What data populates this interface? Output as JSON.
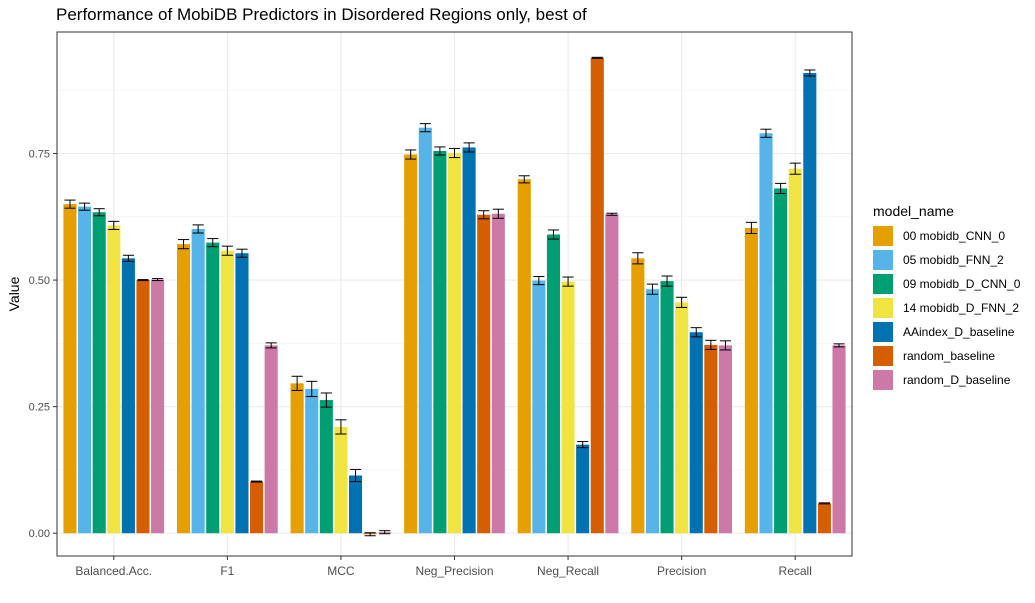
{
  "chart_data": {
    "type": "bar",
    "title": "Performance of MobiDB Predictors in Disordered Regions only, best of",
    "xlabel": "",
    "ylabel": "Value",
    "ylim": [
      -0.045,
      0.99
    ],
    "yticks": [
      0.0,
      0.25,
      0.5,
      0.75
    ],
    "ytick_labels": [
      "0.00",
      "0.25",
      "0.50",
      "0.75"
    ],
    "grid": true,
    "legend_position": "right",
    "legend_title": "model_name",
    "categories": [
      "Balanced.Acc.",
      "F1",
      "MCC",
      "Neg_Precision",
      "Neg_Recall",
      "Precision",
      "Recall"
    ],
    "series": [
      {
        "name": "00 mobidb_CNN_0",
        "color": "#E69F00",
        "values": [
          0.65,
          0.571,
          0.296,
          0.748,
          0.699,
          0.543,
          0.603
        ],
        "errors": [
          0.008,
          0.009,
          0.014,
          0.009,
          0.007,
          0.011,
          0.011
        ]
      },
      {
        "name": "05 mobidb_FNN_2",
        "color": "#56B4E9",
        "values": [
          0.645,
          0.601,
          0.285,
          0.801,
          0.499,
          0.482,
          0.79
        ],
        "errors": [
          0.007,
          0.008,
          0.015,
          0.008,
          0.008,
          0.01,
          0.008
        ]
      },
      {
        "name": "09 mobidb_D_CNN_0",
        "color": "#009E73",
        "values": [
          0.634,
          0.574,
          0.263,
          0.755,
          0.59,
          0.498,
          0.681
        ],
        "errors": [
          0.007,
          0.008,
          0.014,
          0.008,
          0.009,
          0.01,
          0.01
        ]
      },
      {
        "name": "14 mobidb_D_FNN_2",
        "color": "#F0E442",
        "values": [
          0.608,
          0.558,
          0.21,
          0.751,
          0.497,
          0.456,
          0.72
        ],
        "errors": [
          0.008,
          0.009,
          0.014,
          0.009,
          0.009,
          0.01,
          0.011
        ]
      },
      {
        "name": "AAindex_D_baseline",
        "color": "#0072B2",
        "values": [
          0.543,
          0.553,
          0.114,
          0.762,
          0.175,
          0.397,
          0.909
        ],
        "errors": [
          0.006,
          0.008,
          0.012,
          0.009,
          0.006,
          0.009,
          0.006
        ]
      },
      {
        "name": "random_baseline",
        "color": "#D55E00",
        "values": [
          0.5,
          0.102,
          -0.002,
          0.629,
          0.939,
          0.372,
          0.059
        ],
        "errors": [
          0.001,
          0.001,
          0.003,
          0.008,
          0.001,
          0.009,
          0.001
        ]
      },
      {
        "name": "random_D_baseline",
        "color": "#CC79A7",
        "values": [
          0.501,
          0.371,
          0.002,
          0.631,
          0.63,
          0.371,
          0.371
        ],
        "errors": [
          0.002,
          0.005,
          0.003,
          0.009,
          0.002,
          0.009,
          0.003
        ]
      }
    ]
  }
}
